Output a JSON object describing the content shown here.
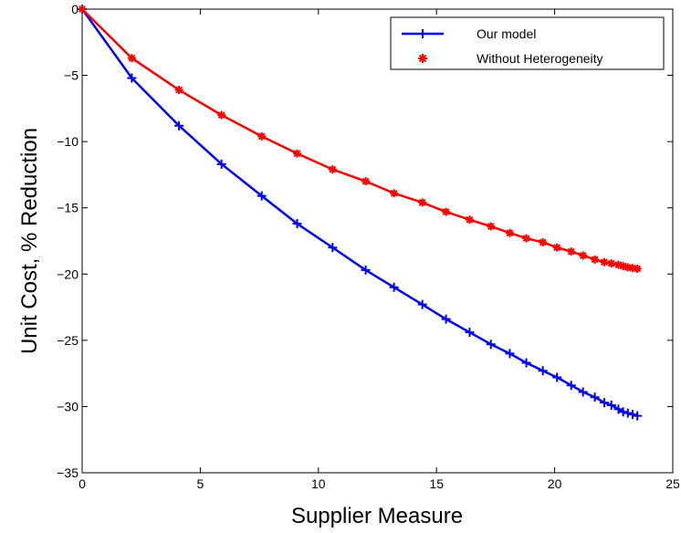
{
  "chart_data": {
    "type": "line",
    "title": "",
    "xlabel": "Supplier Measure",
    "ylabel": "Unit Cost, % Reduction",
    "xlim": [
      0,
      25
    ],
    "ylim": [
      -35,
      0
    ],
    "xticks": [
      0,
      5,
      10,
      15,
      20,
      25
    ],
    "yticks": [
      0,
      -5,
      -10,
      -15,
      -20,
      -25,
      -30,
      -35
    ],
    "grid": false,
    "legend_position": "top-right",
    "series": [
      {
        "name": "Our model",
        "color": "#0000ff",
        "marker": "plus",
        "x": [
          0,
          2.1,
          4.1,
          5.9,
          7.6,
          9.1,
          10.6,
          12.0,
          13.2,
          14.4,
          15.4,
          16.4,
          17.3,
          18.1,
          18.8,
          19.5,
          20.1,
          20.7,
          21.2,
          21.7,
          22.1,
          22.4,
          22.7,
          22.9,
          23.1,
          23.3,
          23.5
        ],
        "y": [
          0,
          -5.2,
          -8.8,
          -11.7,
          -14.1,
          -16.2,
          -18.0,
          -19.7,
          -21.0,
          -22.3,
          -23.4,
          -24.4,
          -25.3,
          -26.0,
          -26.7,
          -27.3,
          -27.8,
          -28.4,
          -28.9,
          -29.3,
          -29.7,
          -29.9,
          -30.2,
          -30.4,
          -30.5,
          -30.6,
          -30.7
        ]
      },
      {
        "name": "Without Heterogeneity",
        "color": "#ff0000",
        "marker": "asterisk",
        "x": [
          0,
          2.1,
          4.1,
          5.9,
          7.6,
          9.1,
          10.6,
          12.0,
          13.2,
          14.4,
          15.4,
          16.4,
          17.3,
          18.1,
          18.8,
          19.5,
          20.1,
          20.7,
          21.2,
          21.7,
          22.1,
          22.4,
          22.7,
          22.9,
          23.1,
          23.3,
          23.5
        ],
        "y": [
          0,
          -3.7,
          -6.1,
          -8.0,
          -9.6,
          -10.9,
          -12.1,
          -13.0,
          -13.9,
          -14.6,
          -15.3,
          -15.9,
          -16.4,
          -16.9,
          -17.3,
          -17.6,
          -18.0,
          -18.3,
          -18.6,
          -18.9,
          -19.1,
          -19.2,
          -19.3,
          -19.4,
          -19.5,
          -19.55,
          -19.6
        ]
      }
    ]
  }
}
